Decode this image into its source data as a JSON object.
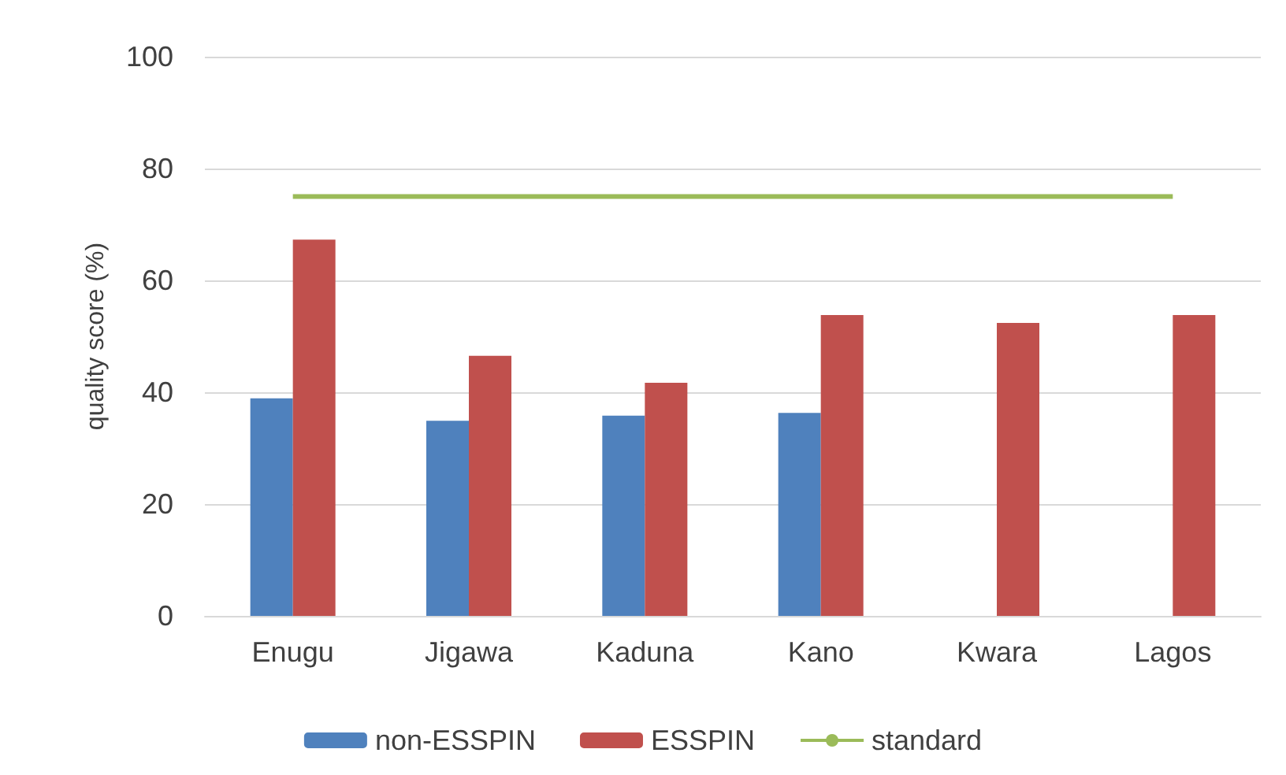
{
  "chart_data": {
    "type": "bar",
    "ylabel": "quality score (%)",
    "categories": [
      "Enugu",
      "Jigawa",
      "Kaduna",
      "Kano",
      "Kwara",
      "Lagos"
    ],
    "series": [
      {
        "name": "non-ESSPIN",
        "color": "#4f81bd",
        "values": [
          38.9,
          34.9,
          35.8,
          36.3,
          null,
          null
        ]
      },
      {
        "name": "ESSPIN",
        "color": "#c0504d",
        "values": [
          67.3,
          46.5,
          41.7,
          53.8,
          52.4,
          53.8
        ]
      },
      {
        "name": "standard",
        "type": "line",
        "color": "#9bbb59",
        "values": [
          75,
          75,
          75,
          75,
          75,
          75
        ],
        "marker": "none"
      }
    ],
    "ylim": [
      0,
      100
    ],
    "yticks": [
      0,
      20,
      40,
      60,
      80,
      100
    ],
    "grid": "y",
    "legend": "bottom"
  }
}
